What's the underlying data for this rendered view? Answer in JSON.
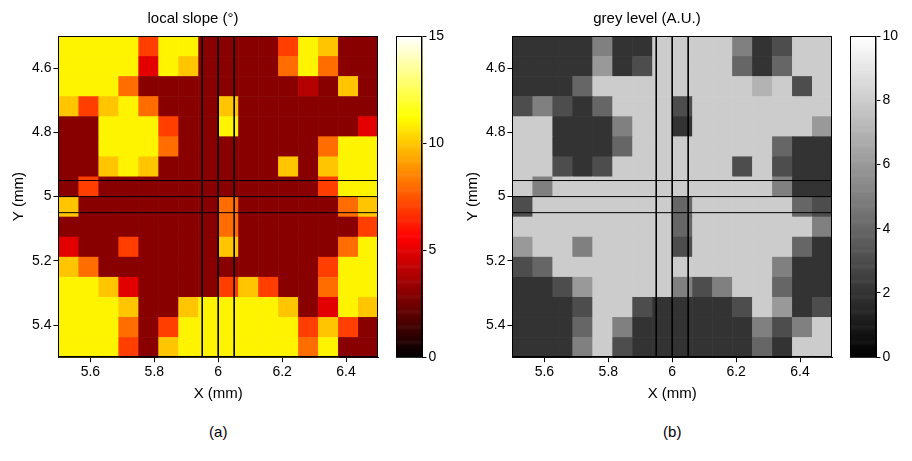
{
  "chart_data": [
    {
      "type": "heatmap",
      "title": "local slope (°)",
      "caption": "(a)",
      "x_label": "X (mm)",
      "y_label": "Y (mm)",
      "xlim": [
        5.5,
        6.5
      ],
      "ylim": [
        5.5,
        4.5
      ],
      "xticks": [
        5.6,
        5.8,
        6,
        6.2,
        6.4
      ],
      "yticks": [
        4.6,
        4.8,
        5,
        5.2,
        5.4
      ],
      "grid": false,
      "color": "hot",
      "colorbar": {
        "range": [
          0,
          15
        ],
        "ticks": [
          0,
          5,
          10,
          15
        ]
      },
      "lines": {
        "x": [
          5.95,
          6,
          6.05
        ],
        "y": [
          4.95,
          5,
          5.05
        ]
      },
      "x": [
        5.53125,
        5.59375,
        5.65625,
        5.71875,
        5.78125,
        5.84375,
        5.90625,
        5.96875,
        6.03125,
        6.09375,
        6.15625,
        6.21875,
        6.28125,
        6.34375,
        6.40625,
        6.46875
      ],
      "y": [
        4.53125,
        4.59375,
        4.65625,
        4.71875,
        4.78125,
        4.84375,
        4.90625,
        4.96875,
        5.03125,
        5.09375,
        5.15625,
        5.21875,
        5.28125,
        5.34375,
        5.40625,
        5.46875
      ],
      "z": [
        [
          11,
          11,
          11,
          11,
          7,
          11,
          11,
          3,
          3,
          3,
          3,
          7,
          11,
          10,
          3,
          3
        ],
        [
          11,
          11,
          11,
          11,
          5,
          11,
          10,
          3,
          3,
          3,
          3,
          8,
          11,
          8,
          3,
          3
        ],
        [
          11,
          11,
          11,
          8,
          3,
          3,
          3,
          3,
          3,
          3,
          3,
          3,
          4,
          3,
          10,
          3
        ],
        [
          10,
          7,
          10,
          11,
          8,
          3,
          3,
          3,
          10,
          3,
          3,
          3,
          3,
          3,
          3,
          3
        ],
        [
          3,
          3,
          11,
          11,
          11,
          7,
          3,
          3,
          11,
          3,
          3,
          3,
          3,
          3,
          3,
          5
        ],
        [
          3,
          3,
          11,
          11,
          11,
          8,
          3,
          3,
          3,
          3,
          3,
          3,
          3,
          8,
          11,
          11
        ],
        [
          3,
          3,
          10,
          11,
          10,
          3,
          3,
          3,
          3,
          3,
          3,
          10,
          3,
          10,
          11,
          11
        ],
        [
          3,
          7,
          3,
          3,
          3,
          3,
          3,
          3,
          3,
          3,
          3,
          3,
          3,
          7,
          11,
          11
        ],
        [
          10,
          3,
          3,
          3,
          3,
          3,
          3,
          3,
          8,
          3,
          3,
          3,
          3,
          3,
          8,
          10
        ],
        [
          3,
          3,
          3,
          3,
          3,
          3,
          3,
          3,
          8,
          3,
          3,
          3,
          3,
          3,
          3,
          7
        ],
        [
          5,
          3,
          3,
          7,
          3,
          3,
          3,
          3,
          10,
          3,
          3,
          3,
          3,
          3,
          8,
          11
        ],
        [
          10,
          8,
          3,
          3,
          3,
          3,
          3,
          3,
          3,
          3,
          3,
          3,
          3,
          7,
          11,
          11
        ],
        [
          11,
          11,
          10,
          5,
          3,
          3,
          3,
          3,
          7,
          10,
          7,
          3,
          3,
          8,
          11,
          11
        ],
        [
          11,
          11,
          11,
          10,
          3,
          3,
          10,
          11,
          11,
          11,
          11,
          10,
          3,
          5,
          11,
          10
        ],
        [
          11,
          11,
          11,
          8,
          3,
          7,
          11,
          11,
          11,
          11,
          11,
          11,
          7,
          10,
          7,
          3
        ],
        [
          11,
          11,
          11,
          7,
          3,
          10,
          11,
          11,
          11,
          11,
          11,
          11,
          8,
          11,
          3,
          3
        ]
      ]
    },
    {
      "type": "heatmap",
      "title": "grey level (A.U.)",
      "caption": "(b)",
      "x_label": "X (mm)",
      "y_label": "Y (mm)",
      "xlim": [
        5.5,
        6.5
      ],
      "ylim": [
        5.5,
        4.5
      ],
      "xticks": [
        5.6,
        5.8,
        6,
        6.2,
        6.4
      ],
      "yticks": [
        4.6,
        4.8,
        5,
        5.2,
        5.4
      ],
      "grid": false,
      "color": "gray",
      "colorbar": {
        "range": [
          0,
          10
        ],
        "ticks": [
          0,
          2,
          4,
          6,
          8,
          10
        ]
      },
      "lines": {
        "x": [
          5.95,
          6,
          6.05
        ],
        "y": [
          4.95,
          5,
          5.05
        ]
      },
      "x": [
        5.53125,
        5.59375,
        5.65625,
        5.71875,
        5.78125,
        5.84375,
        5.90625,
        5.96875,
        6.03125,
        6.09375,
        6.15625,
        6.21875,
        6.28125,
        6.34375,
        6.40625,
        6.46875
      ],
      "y": [
        4.53125,
        4.59375,
        4.65625,
        4.71875,
        4.78125,
        4.84375,
        4.90625,
        4.96875,
        5.03125,
        5.09375,
        5.15625,
        5.21875,
        5.28125,
        5.34375,
        5.40625,
        5.46875
      ],
      "z": [
        [
          2,
          2,
          2,
          2,
          5,
          2,
          2,
          8,
          8,
          8,
          8,
          5,
          2,
          3,
          8,
          8
        ],
        [
          2,
          2,
          2,
          2,
          6,
          2,
          3,
          8,
          8,
          8,
          8,
          4,
          2,
          4,
          8,
          8
        ],
        [
          2,
          2,
          2,
          4,
          8,
          8,
          8,
          8,
          8,
          8,
          8,
          8,
          7,
          8,
          3,
          8
        ],
        [
          3,
          5,
          3,
          2,
          4,
          8,
          8,
          8,
          3,
          8,
          8,
          8,
          8,
          8,
          8,
          8
        ],
        [
          8,
          8,
          2,
          2,
          2,
          5,
          8,
          8,
          2,
          8,
          8,
          8,
          8,
          8,
          8,
          6
        ],
        [
          8,
          8,
          2,
          2,
          2,
          4,
          8,
          8,
          8,
          8,
          8,
          8,
          8,
          4,
          2,
          2
        ],
        [
          8,
          8,
          3,
          2,
          3,
          8,
          8,
          8,
          8,
          8,
          8,
          3,
          8,
          3,
          2,
          2
        ],
        [
          8,
          5,
          8,
          8,
          8,
          8,
          8,
          8,
          8,
          8,
          8,
          8,
          8,
          5,
          2,
          2
        ],
        [
          3,
          8,
          8,
          8,
          8,
          8,
          8,
          8,
          4,
          8,
          8,
          8,
          8,
          8,
          4,
          3
        ],
        [
          8,
          8,
          8,
          8,
          8,
          8,
          8,
          8,
          4,
          8,
          8,
          8,
          8,
          8,
          8,
          5
        ],
        [
          6,
          8,
          8,
          5,
          8,
          8,
          8,
          8,
          3,
          8,
          8,
          8,
          8,
          8,
          4,
          2
        ],
        [
          3,
          4,
          8,
          8,
          8,
          8,
          8,
          8,
          8,
          8,
          8,
          8,
          8,
          5,
          2,
          2
        ],
        [
          2,
          2,
          3,
          6,
          8,
          8,
          8,
          8,
          5,
          3,
          5,
          8,
          8,
          4,
          2,
          2
        ],
        [
          2,
          2,
          2,
          3,
          8,
          8,
          3,
          2,
          2,
          2,
          2,
          3,
          8,
          6,
          2,
          3
        ],
        [
          2,
          2,
          2,
          4,
          8,
          5,
          2,
          2,
          2,
          2,
          2,
          2,
          5,
          3,
          5,
          8
        ],
        [
          2,
          2,
          2,
          5,
          8,
          3,
          2,
          2,
          2,
          2,
          2,
          2,
          4,
          2,
          8,
          8
        ]
      ]
    }
  ]
}
